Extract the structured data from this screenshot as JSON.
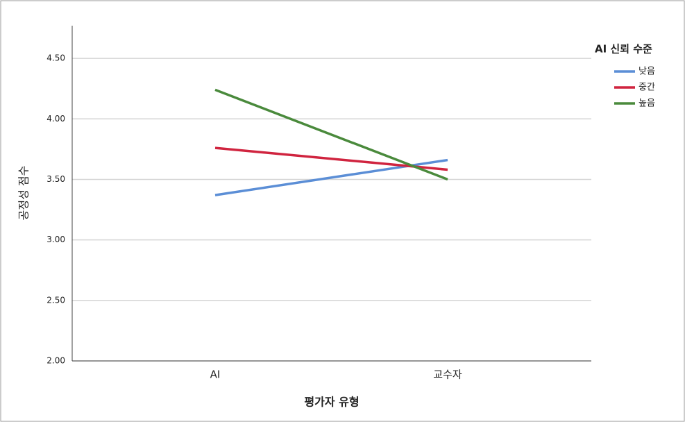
{
  "chart_data": {
    "type": "line",
    "y_label": "공정성 점수",
    "x_label": "평가자 유형",
    "legend_title": "AI 신뢰 수준",
    "categories": [
      "AI",
      "교수자"
    ],
    "series": [
      {
        "name": "낮음",
        "color": "#5b8ed6",
        "values": [
          3.37,
          3.66
        ]
      },
      {
        "name": "중간",
        "color": "#d0243f",
        "values": [
          3.76,
          3.58
        ]
      },
      {
        "name": "높음",
        "color": "#4a8a3c",
        "values": [
          4.24,
          3.5
        ]
      }
    ],
    "ylim": [
      2.0,
      4.77
    ],
    "yticks": [
      {
        "value": 2.0,
        "label": "2.00"
      },
      {
        "value": 2.5,
        "label": "2.50"
      },
      {
        "value": 3.0,
        "label": "3.00"
      },
      {
        "value": 3.5,
        "label": "3.50"
      },
      {
        "value": 4.0,
        "label": "4.00"
      },
      {
        "value": 4.5,
        "label": "4.50"
      }
    ],
    "grid": true,
    "legend": "right"
  }
}
